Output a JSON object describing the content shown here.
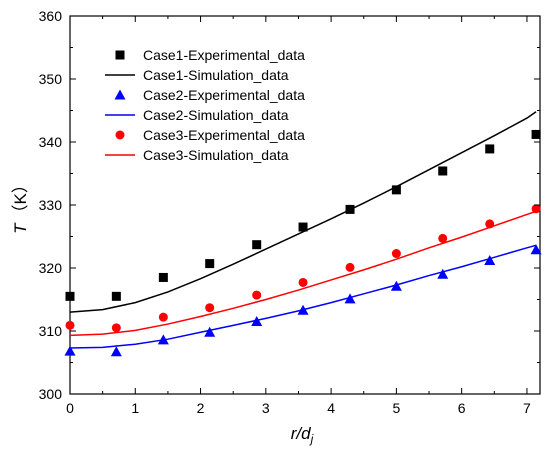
{
  "chart_data": {
    "type": "line",
    "title": "",
    "xlabel_main": "r/d",
    "xlabel_sub": "j",
    "ylabel_main": "T",
    "ylabel_unit": "（K）",
    "xlim": [
      0,
      7.2
    ],
    "ylim": [
      300,
      360
    ],
    "xticks": [
      0,
      1,
      2,
      3,
      4,
      5,
      6,
      7
    ],
    "yticks": [
      300,
      310,
      320,
      330,
      340,
      350,
      360
    ],
    "grid": false,
    "legend_position": "top-left",
    "series": [
      {
        "name": "Case1-Experimental_data",
        "kind": "scatter",
        "marker": "square",
        "color": "#000000",
        "x": [
          0,
          0.71,
          1.43,
          2.14,
          2.86,
          3.57,
          4.29,
          5.0,
          5.71,
          6.43,
          7.14
        ],
        "y": [
          315.5,
          315.5,
          318.5,
          320.7,
          323.7,
          326.5,
          329.3,
          332.4,
          335.4,
          338.9,
          341.2
        ]
      },
      {
        "name": "Case1-Simulation_data",
        "kind": "line",
        "color": "#000000",
        "x": [
          0,
          0.5,
          1.0,
          1.5,
          2.0,
          2.5,
          3.0,
          3.5,
          4.0,
          4.5,
          5.0,
          5.5,
          6.0,
          6.5,
          7.0,
          7.14
        ],
        "y": [
          313.0,
          313.4,
          314.5,
          316.2,
          318.3,
          320.6,
          323.0,
          325.4,
          327.8,
          330.3,
          332.9,
          335.6,
          338.3,
          341.0,
          343.8,
          344.8
        ]
      },
      {
        "name": "Case2-Experimental_data",
        "kind": "scatter",
        "marker": "triangle",
        "color": "#0000ff",
        "x": [
          0,
          0.71,
          1.43,
          2.14,
          2.86,
          3.57,
          4.29,
          5.0,
          5.71,
          6.43,
          7.14
        ],
        "y": [
          306.8,
          306.7,
          308.6,
          309.8,
          311.5,
          313.3,
          315.1,
          317.1,
          319.0,
          321.2,
          322.9
        ]
      },
      {
        "name": "Case2-Simulation_data",
        "kind": "line",
        "color": "#0000ff",
        "x": [
          0,
          0.5,
          1.0,
          1.5,
          2.0,
          2.5,
          3.0,
          3.5,
          4.0,
          4.5,
          5.0,
          5.5,
          6.0,
          6.5,
          7.0,
          7.14
        ],
        "y": [
          307.3,
          307.4,
          307.9,
          308.7,
          309.8,
          310.9,
          312.0,
          313.2,
          314.5,
          315.9,
          317.3,
          318.8,
          320.2,
          321.7,
          323.2,
          323.6
        ]
      },
      {
        "name": "Case3-Experimental_data",
        "kind": "scatter",
        "marker": "circle",
        "color": "#ff0000",
        "x": [
          0,
          0.71,
          1.43,
          2.14,
          2.86,
          3.57,
          4.29,
          5.0,
          5.71,
          6.43,
          7.14
        ],
        "y": [
          310.9,
          310.5,
          312.2,
          313.7,
          315.7,
          317.7,
          320.1,
          322.3,
          324.7,
          327.0,
          329.4
        ]
      },
      {
        "name": "Case3-Simulation_data",
        "kind": "line",
        "color": "#ff0000",
        "x": [
          0,
          0.5,
          1.0,
          1.5,
          2.0,
          2.5,
          3.0,
          3.5,
          4.0,
          4.5,
          5.0,
          5.5,
          6.0,
          6.5,
          7.0,
          7.14
        ],
        "y": [
          309.3,
          309.5,
          310.1,
          311.1,
          312.3,
          313.6,
          315.0,
          316.5,
          318.1,
          319.7,
          321.4,
          323.2,
          324.9,
          326.7,
          328.5,
          329.0
        ]
      }
    ]
  }
}
